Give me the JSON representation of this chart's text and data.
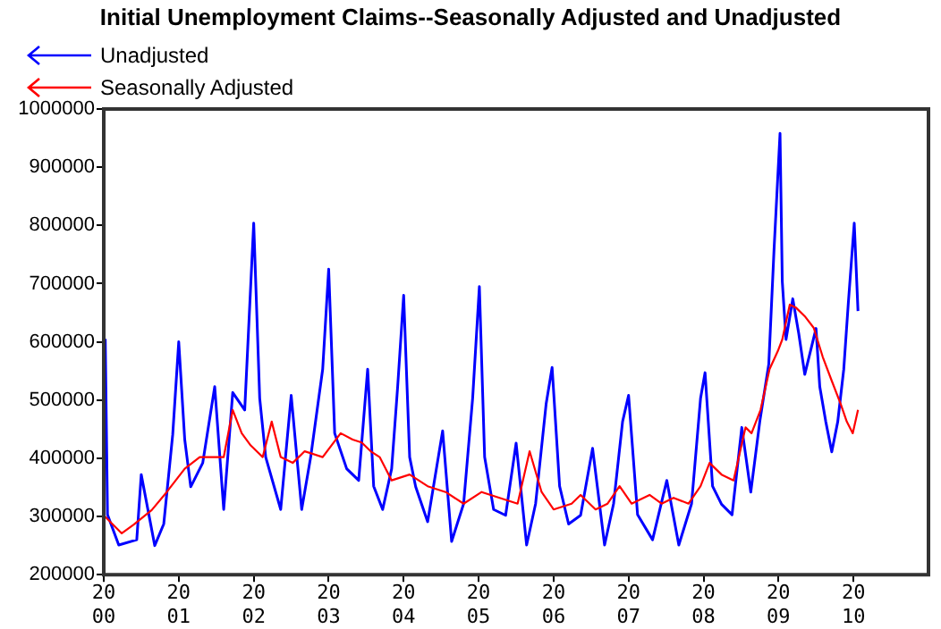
{
  "chart_data": {
    "type": "line",
    "title": "Initial Unemployment Claims--Seasonally Adjusted and Unadjusted",
    "legend": "top left",
    "xlim": [
      2000,
      2011
    ],
    "xticks": [
      {
        "value": 2000,
        "label": "2000"
      },
      {
        "value": 2001,
        "label": "2001"
      },
      {
        "value": 2002,
        "label": "2002"
      },
      {
        "value": 2003,
        "label": "2003"
      },
      {
        "value": 2004,
        "label": "2004"
      },
      {
        "value": 2005,
        "label": "2005"
      },
      {
        "value": 2006,
        "label": "2006"
      },
      {
        "value": 2007,
        "label": "2007"
      },
      {
        "value": 2008,
        "label": "2008"
      },
      {
        "value": 2009,
        "label": "2009"
      },
      {
        "value": 2010,
        "label": "2010"
      }
    ],
    "ylim": [
      200000,
      1000000
    ],
    "yticks": [
      200000,
      300000,
      400000,
      500000,
      600000,
      700000,
      800000,
      900000,
      1000000
    ],
    "series": [
      {
        "name": "Unadjusted",
        "color": "#0000ff",
        "x": [
          2000.02,
          2000.05,
          2000.2,
          2000.44,
          2000.5,
          2000.68,
          2000.8,
          2000.92,
          2001.0,
          2001.08,
          2001.16,
          2001.32,
          2001.48,
          2001.6,
          2001.72,
          2001.88,
          2002.0,
          2002.08,
          2002.16,
          2002.36,
          2002.5,
          2002.64,
          2002.76,
          2002.92,
          2003.0,
          2003.08,
          2003.24,
          2003.4,
          2003.52,
          2003.6,
          2003.72,
          2003.84,
          2003.92,
          2004.0,
          2004.08,
          2004.16,
          2004.32,
          2004.52,
          2004.64,
          2004.8,
          2004.92,
          2005.01,
          2005.08,
          2005.2,
          2005.36,
          2005.5,
          2005.64,
          2005.76,
          2005.9,
          2005.98,
          2006.08,
          2006.2,
          2006.36,
          2006.52,
          2006.68,
          2006.8,
          2006.92,
          2007.0,
          2007.12,
          2007.32,
          2007.51,
          2007.67,
          2007.84,
          2007.96,
          2008.02,
          2008.12,
          2008.24,
          2008.38,
          2008.51,
          2008.63,
          2008.75,
          2008.87,
          2008.94,
          2009.02,
          2009.05,
          2009.1,
          2009.19,
          2009.27,
          2009.35,
          2009.5,
          2009.55,
          2009.63,
          2009.71,
          2009.79,
          2009.87,
          2009.93,
          2010.01,
          2010.06
        ],
        "values": [
          605000,
          303000,
          251000,
          260000,
          372000,
          250000,
          287000,
          441000,
          600000,
          432000,
          351000,
          392000,
          523000,
          312000,
          513000,
          483000,
          804000,
          503000,
          402000,
          312000,
          508000,
          312000,
          402000,
          553000,
          725000,
          443000,
          382000,
          362000,
          553000,
          352000,
          312000,
          382000,
          523000,
          680000,
          402000,
          351000,
          291000,
          447000,
          257000,
          322000,
          503000,
          695000,
          402000,
          312000,
          302000,
          426000,
          251000,
          322000,
          493000,
          556000,
          352000,
          287000,
          302000,
          417000,
          251000,
          322000,
          463000,
          508000,
          303000,
          260000,
          362000,
          251000,
          322000,
          503000,
          547000,
          352000,
          321000,
          303000,
          453000,
          342000,
          463000,
          562000,
          758000,
          958000,
          704000,
          604000,
          674000,
          614000,
          544000,
          623000,
          523000,
          463000,
          411000,
          463000,
          553000,
          665000,
          804000,
          653000
        ]
      },
      {
        "name": "Seasonally Adjusted",
        "color": "#ff0000",
        "x": [
          2000.0,
          2000.24,
          2000.4,
          2000.64,
          2000.84,
          2001.08,
          2001.28,
          2001.48,
          2001.6,
          2001.72,
          2001.84,
          2001.96,
          2002.12,
          2002.24,
          2002.36,
          2002.52,
          2002.68,
          2002.92,
          2003.16,
          2003.32,
          2003.44,
          2003.56,
          2003.68,
          2003.84,
          2004.08,
          2004.32,
          2004.56,
          2004.8,
          2005.04,
          2005.28,
          2005.52,
          2005.68,
          2005.84,
          2006.0,
          2006.24,
          2006.36,
          2006.56,
          2006.72,
          2006.88,
          2007.04,
          2007.28,
          2007.44,
          2007.6,
          2007.8,
          2007.96,
          2008.08,
          2008.24,
          2008.4,
          2008.56,
          2008.64,
          2008.76,
          2008.88,
          2008.99,
          2009.05,
          2009.15,
          2009.23,
          2009.35,
          2009.47,
          2009.59,
          2009.71,
          2009.83,
          2009.91,
          2009.99,
          2010.06
        ],
        "values": [
          302000,
          271000,
          286000,
          311000,
          342000,
          382000,
          402000,
          402000,
          402000,
          483000,
          443000,
          422000,
          402000,
          463000,
          402000,
          392000,
          412000,
          402000,
          443000,
          432000,
          427000,
          412000,
          402000,
          362000,
          372000,
          352000,
          342000,
          322000,
          342000,
          332000,
          322000,
          412000,
          342000,
          312000,
          322000,
          337000,
          312000,
          322000,
          352000,
          322000,
          337000,
          322000,
          332000,
          322000,
          352000,
          392000,
          372000,
          362000,
          453000,
          443000,
          483000,
          553000,
          584000,
          604000,
          664000,
          659000,
          644000,
          624000,
          574000,
          533000,
          493000,
          463000,
          443000,
          483000
        ]
      }
    ]
  }
}
